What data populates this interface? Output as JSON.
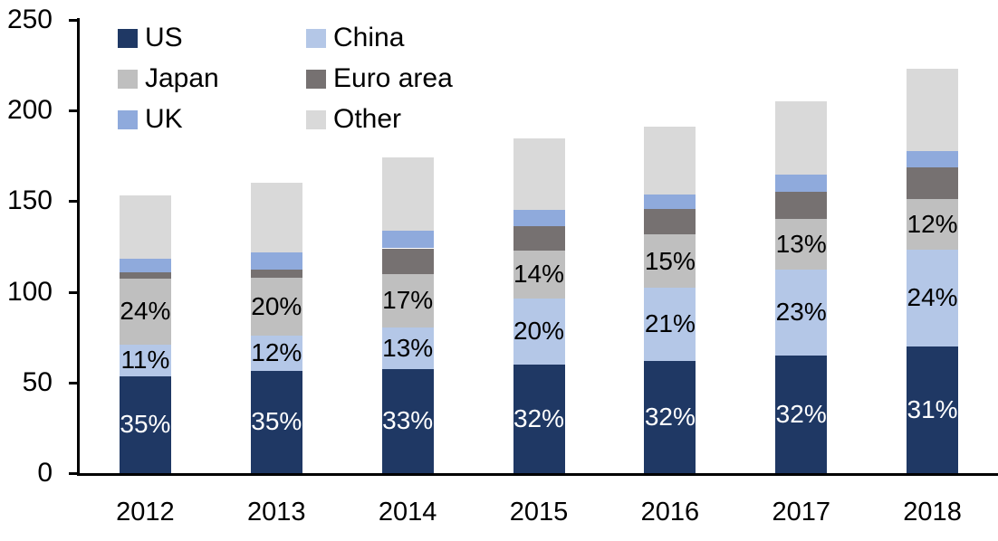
{
  "chart_data": {
    "type": "bar",
    "stacked": true,
    "title": "",
    "categories": [
      "2012",
      "2013",
      "2014",
      "2015",
      "2016",
      "2017",
      "2018"
    ],
    "series": [
      {
        "name": "US",
        "color": "#1F3864",
        "values": [
          53.5,
          56.5,
          57.5,
          60,
          62,
          65,
          70
        ],
        "bar_labels": [
          "35%",
          "35%",
          "33%",
          "32%",
          "32%",
          "32%",
          "31%"
        ],
        "bar_label_color": "#FFFFFF"
      },
      {
        "name": "China",
        "color": "#B4C7E7",
        "values": [
          17.5,
          19.5,
          23,
          36.5,
          40.5,
          47.5,
          53.5
        ],
        "bar_labels": [
          "11%",
          "12%",
          "13%",
          "20%",
          "21%",
          "23%",
          "24%"
        ],
        "bar_label_color": "#000000"
      },
      {
        "name": "Japan",
        "color": "#BFBFBF",
        "values": [
          36.5,
          32,
          29.5,
          26.5,
          29,
          27.5,
          27.5
        ],
        "bar_labels": [
          "24%",
          "20%",
          "17%",
          "14%",
          "15%",
          "13%",
          "12%"
        ],
        "bar_label_color": "#000000"
      },
      {
        "name": "Euro area",
        "color": "#767171",
        "values": [
          3.5,
          4.5,
          14,
          13,
          14,
          15,
          17.5
        ],
        "bar_labels": [
          "",
          "",
          "",
          "",
          "",
          "",
          ""
        ],
        "bar_label_color": "#000000"
      },
      {
        "name": "UK",
        "color": "#8FAADC",
        "values": [
          7.5,
          9.5,
          9.5,
          9,
          8,
          9.5,
          9
        ],
        "bar_labels": [
          "",
          "",
          "",
          "",
          "",
          "",
          ""
        ],
        "bar_label_color": "#000000"
      },
      {
        "name": "Other",
        "color": "#D9D9D9",
        "values": [
          34.5,
          38,
          40.5,
          39.5,
          37.5,
          40.5,
          45.5
        ],
        "bar_labels": [
          "",
          "",
          "",
          "",
          "",
          "",
          ""
        ],
        "bar_label_color": "#000000"
      }
    ],
    "totals": [
      153,
      160,
      174,
      184.5,
      191,
      205,
      223
    ],
    "ylim": [
      0,
      250
    ],
    "yticks": [
      "0",
      "50",
      "100",
      "150",
      "200",
      "250"
    ],
    "xlabel": "",
    "ylabel": "",
    "grid": false,
    "legend_position": "top-left",
    "legend_columns": 2,
    "axis_color": "#000000",
    "background_color": "#FFFFFF"
  }
}
